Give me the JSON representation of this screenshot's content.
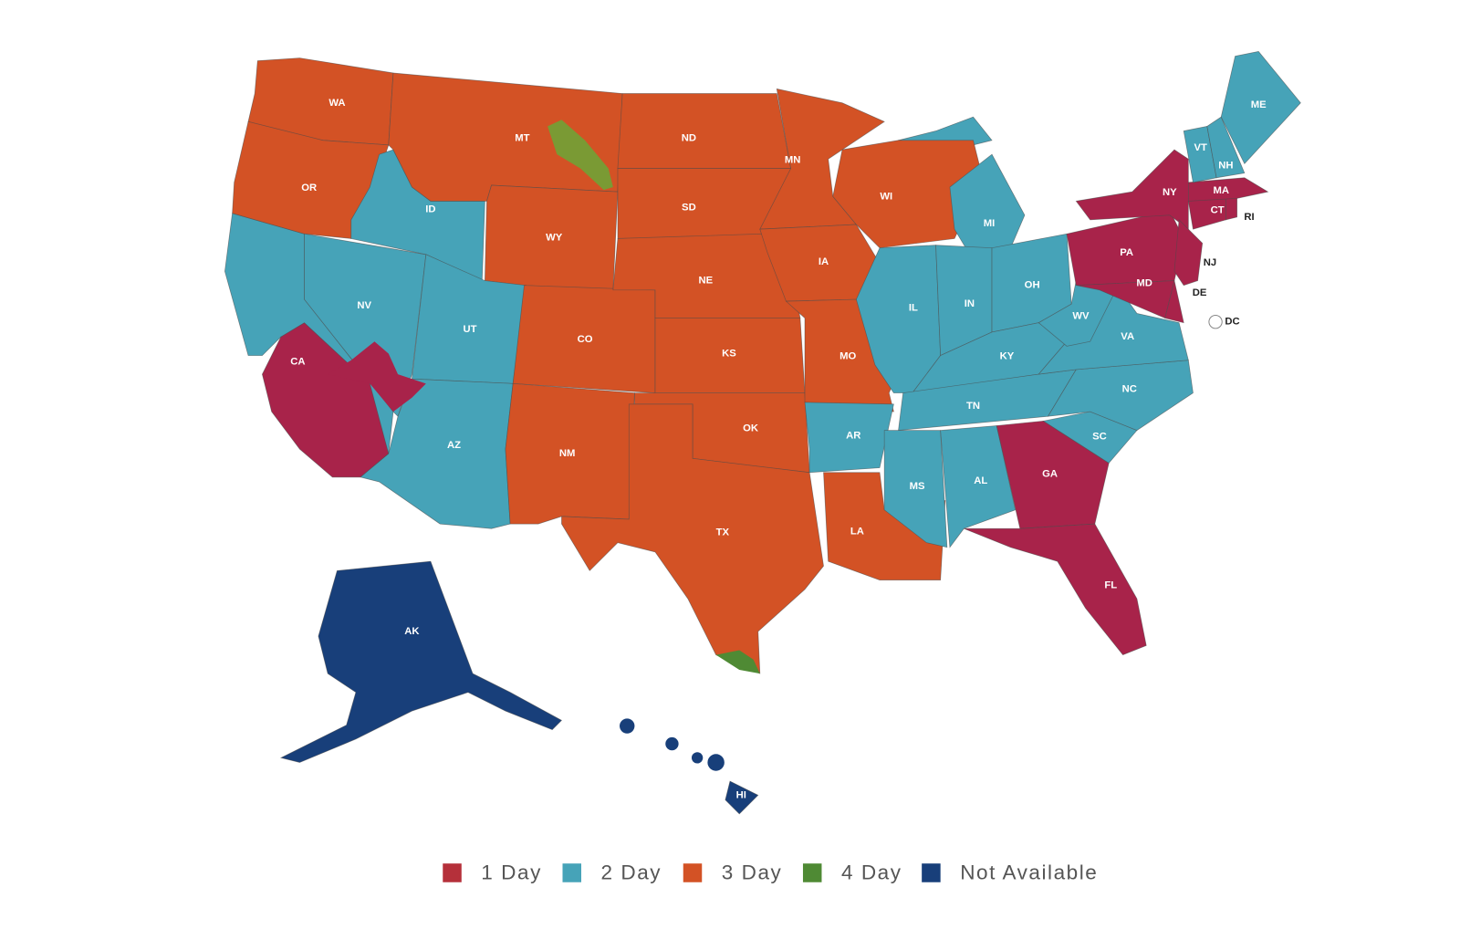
{
  "map": {
    "states": [
      {
        "label": "WA",
        "color": "#d35225"
      },
      {
        "label": "OR",
        "color": "#d35225"
      },
      {
        "label": "CA",
        "color": "#a8234a"
      },
      {
        "label": "NV",
        "color": "#46a3b8"
      },
      {
        "label": "ID",
        "color": "#46a3b8"
      },
      {
        "label": "MT",
        "color": "#d35225"
      },
      {
        "label": "WY",
        "color": "#d35225"
      },
      {
        "label": "UT",
        "color": "#46a3b8"
      },
      {
        "label": "AZ",
        "color": "#46a3b8"
      },
      {
        "label": "CO",
        "color": "#d35225"
      },
      {
        "label": "NM",
        "color": "#d35225"
      },
      {
        "label": "ND",
        "color": "#d35225"
      },
      {
        "label": "SD",
        "color": "#d35225"
      },
      {
        "label": "NE",
        "color": "#d35225"
      },
      {
        "label": "KS",
        "color": "#d35225"
      },
      {
        "label": "OK",
        "color": "#d35225"
      },
      {
        "label": "TX",
        "color": "#d35225"
      },
      {
        "label": "MN",
        "color": "#d35225"
      },
      {
        "label": "IA",
        "color": "#d35225"
      },
      {
        "label": "MO",
        "color": "#d35225"
      },
      {
        "label": "AR",
        "color": "#46a3b8"
      },
      {
        "label": "LA",
        "color": "#d35225"
      },
      {
        "label": "WI",
        "color": "#d35225"
      },
      {
        "label": "IL",
        "color": "#46a3b8"
      },
      {
        "label": "MI",
        "color": "#46a3b8"
      },
      {
        "label": "IN",
        "color": "#46a3b8"
      },
      {
        "label": "OH",
        "color": "#46a3b8"
      },
      {
        "label": "KY",
        "color": "#46a3b8"
      },
      {
        "label": "TN",
        "color": "#46a3b8"
      },
      {
        "label": "MS",
        "color": "#46a3b8"
      },
      {
        "label": "AL",
        "color": "#46a3b8"
      },
      {
        "label": "GA",
        "color": "#a8234a"
      },
      {
        "label": "FL",
        "color": "#a8234a"
      },
      {
        "label": "SC",
        "color": "#46a3b8"
      },
      {
        "label": "NC",
        "color": "#46a3b8"
      },
      {
        "label": "VA",
        "color": "#46a3b8"
      },
      {
        "label": "WV",
        "color": "#46a3b8"
      },
      {
        "label": "PA",
        "color": "#a8234a"
      },
      {
        "label": "NY",
        "color": "#a8234a"
      },
      {
        "label": "MD",
        "color": "#a8234a"
      },
      {
        "label": "DE",
        "color": "#a8234a"
      },
      {
        "label": "NJ",
        "color": "#a8234a"
      },
      {
        "label": "CT",
        "color": "#a8234a"
      },
      {
        "label": "RI",
        "color": "#a8234a"
      },
      {
        "label": "MA",
        "color": "#a8234a"
      },
      {
        "label": "VT",
        "color": "#46a3b8"
      },
      {
        "label": "NH",
        "color": "#46a3b8"
      },
      {
        "label": "ME",
        "color": "#46a3b8"
      },
      {
        "label": "AK",
        "color": "#183f7a"
      },
      {
        "label": "HI",
        "color": "#183f7a"
      },
      {
        "label": "DC",
        "color": "#ffffff"
      }
    ]
  },
  "legend": [
    {
      "label": "1 Day",
      "color": "#b5303a"
    },
    {
      "label": "2 Day",
      "color": "#46a3b8"
    },
    {
      "label": "3 Day",
      "color": "#d35225"
    },
    {
      "label": "4 Day",
      "color": "#4f8a34"
    },
    {
      "label": "Not Available",
      "color": "#183f7a"
    }
  ]
}
